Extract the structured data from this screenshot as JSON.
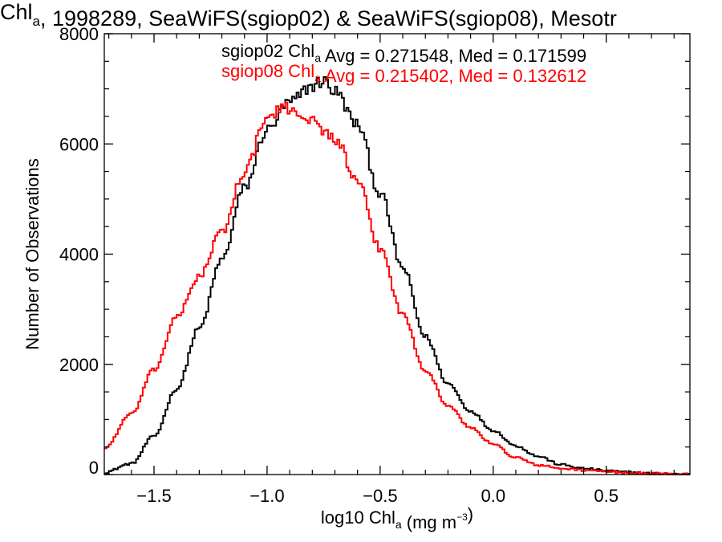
{
  "chart_data": {
    "type": "line",
    "title": {
      "parts": [
        {
          "t": "Chl",
          "sub": false
        },
        {
          "t": "a",
          "sub": true
        },
        {
          "t": ", 1998289, SeaWiFS(sgiop02) & SeaWiFS(sgiop08), Mesotr",
          "sub": false
        }
      ]
    },
    "xlabel": {
      "parts": [
        {
          "t": "log10 Chl",
          "sup": false,
          "sub": false
        },
        {
          "t": "a",
          "sub": true
        },
        {
          "t": " (mg m",
          "sub": false
        },
        {
          "t": "−3",
          "sup": true
        },
        {
          "t": ")",
          "sub": false
        }
      ]
    },
    "ylabel": "Number of Observations",
    "xlim": [
      -1.72,
      0.87
    ],
    "ylim": [
      0,
      8000
    ],
    "x_ticks": [
      -1.5,
      -1.0,
      -0.5,
      0.0,
      0.5
    ],
    "x_tick_labels": [
      "−1.5",
      "−1.0",
      "−0.5",
      "0.0",
      "0.5"
    ],
    "y_ticks": [
      0,
      2000,
      4000,
      6000,
      8000
    ],
    "y_tick_labels": [
      "0",
      "2000",
      "4000",
      "6000",
      "8000"
    ],
    "x_minor_step": 0.1,
    "y_minor_step": 500,
    "grid": false,
    "bin_width": 0.01,
    "series": [
      {
        "name": "sgiop02",
        "color": "#000000",
        "annotation_parts": [
          {
            "t": "sgiop02 Chl",
            "sub": false
          },
          {
            "t": "a",
            "sub": true
          },
          {
            "t": " Avg = 0.271548, Med = 0.171599",
            "sub": false
          }
        ],
        "points": [
          [
            -1.72,
            40
          ],
          [
            -1.6,
            200
          ],
          [
            -1.5,
            700
          ],
          [
            -1.4,
            1550
          ],
          [
            -1.3,
            2650
          ],
          [
            -1.2,
            3900
          ],
          [
            -1.1,
            5200
          ],
          [
            -1.0,
            6250
          ],
          [
            -0.9,
            6750
          ],
          [
            -0.8,
            7050
          ],
          [
            -0.75,
            7150
          ],
          [
            -0.7,
            6950
          ],
          [
            -0.6,
            6350
          ],
          [
            -0.5,
            5100
          ],
          [
            -0.4,
            3750
          ],
          [
            -0.3,
            2500
          ],
          [
            -0.2,
            1650
          ],
          [
            -0.1,
            1150
          ],
          [
            0.0,
            800
          ],
          [
            0.1,
            520
          ],
          [
            0.2,
            330
          ],
          [
            0.3,
            180
          ],
          [
            0.4,
            110
          ],
          [
            0.5,
            70
          ],
          [
            0.6,
            40
          ],
          [
            0.7,
            20
          ],
          [
            0.87,
            5
          ]
        ]
      },
      {
        "name": "sgiop08",
        "color": "#ff0000",
        "annotation_parts": [
          {
            "t": "sgiop08 Chl",
            "sub": false
          },
          {
            "t": "a",
            "sub": true
          },
          {
            "t": " Avg = 0.215402, Med = 0.132612",
            "sub": false
          }
        ],
        "points": [
          [
            -1.72,
            480
          ],
          [
            -1.6,
            1100
          ],
          [
            -1.5,
            1900
          ],
          [
            -1.4,
            2850
          ],
          [
            -1.3,
            3600
          ],
          [
            -1.2,
            4400
          ],
          [
            -1.1,
            5500
          ],
          [
            -1.0,
            6450
          ],
          [
            -0.95,
            6600
          ],
          [
            -0.9,
            6650
          ],
          [
            -0.85,
            6550
          ],
          [
            -0.8,
            6400
          ],
          [
            -0.7,
            6100
          ],
          [
            -0.6,
            5300
          ],
          [
            -0.5,
            4100
          ],
          [
            -0.4,
            2900
          ],
          [
            -0.3,
            1900
          ],
          [
            -0.2,
            1250
          ],
          [
            -0.1,
            850
          ],
          [
            0.0,
            550
          ],
          [
            0.1,
            310
          ],
          [
            0.2,
            170
          ],
          [
            0.3,
            110
          ],
          [
            0.4,
            80
          ],
          [
            0.5,
            55
          ],
          [
            0.6,
            30
          ],
          [
            0.7,
            15
          ],
          [
            0.87,
            5
          ]
        ]
      }
    ]
  }
}
